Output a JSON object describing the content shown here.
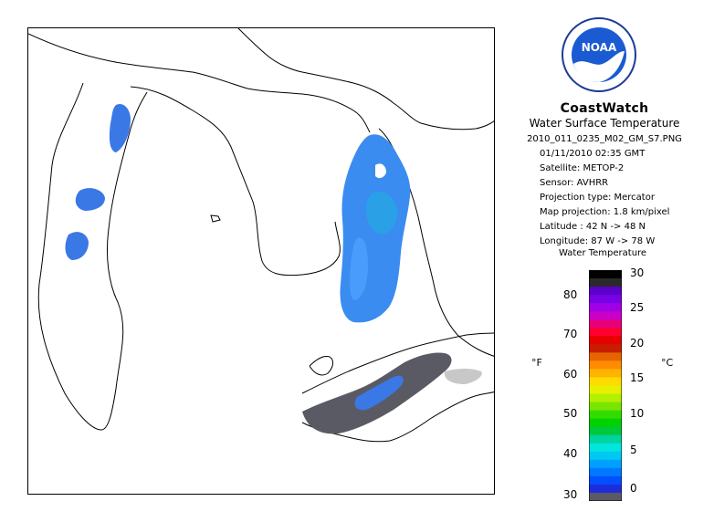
{
  "branding": {
    "agency_logo_text": "NOAA",
    "title": "CoastWatch",
    "subtitle": "Water Surface Temperature"
  },
  "image_info": {
    "filename": "2010_011_0235_M02_GM_S7.PNG",
    "datetime": "01/11/2010   02:35 GMT",
    "satellite": "Satellite: METOP-2",
    "sensor": "Sensor: AVHRR",
    "projection_type": "Projection type:  Mercator",
    "map_projection": "Map projection: 1.8 km/pixel",
    "latitude": "Latitude : 42 N -> 48 N",
    "longitude": "Longitude: 87 W -> 78 W"
  },
  "legend": {
    "title": "Water Temperature",
    "unit_f": "°F",
    "unit_c": "°C",
    "fahrenheit_ticks": [
      "80",
      "70",
      "60",
      "50",
      "40",
      "30"
    ],
    "celsius_ticks": [
      "30",
      "25",
      "20",
      "15",
      "10",
      "5",
      "0"
    ],
    "colors": [
      "#000000",
      "#2a2a2a",
      "#5a00c8",
      "#7a00e6",
      "#a000e6",
      "#c800c8",
      "#e6007a",
      "#ff0030",
      "#e60000",
      "#c81e00",
      "#e66400",
      "#ff8c00",
      "#ffb400",
      "#ffdc00",
      "#e6f000",
      "#b4f000",
      "#7ae600",
      "#32dc00",
      "#00d200",
      "#00c83c",
      "#00d2a0",
      "#00e6dc",
      "#00c8f0",
      "#00a0ff",
      "#0078ff",
      "#0050ff",
      "#1e2ddc",
      "#5a5a64"
    ]
  }
}
